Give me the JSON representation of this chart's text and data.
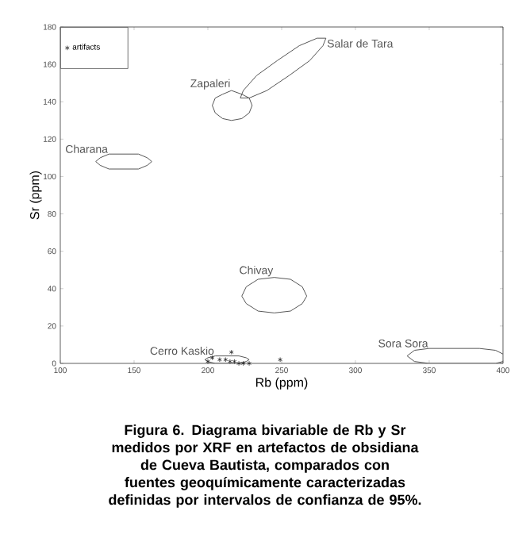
{
  "chart_data": {
    "type": "scatter",
    "xlabel": "Rb (ppm)",
    "ylabel": "Sr (ppm)",
    "xlim": [
      100,
      400
    ],
    "ylim": [
      0,
      180
    ],
    "xticks": [
      100,
      150,
      200,
      250,
      300,
      350,
      400
    ],
    "yticks": [
      0,
      20,
      40,
      60,
      80,
      100,
      120,
      140,
      160,
      180
    ],
    "legend": "top left",
    "series": [
      {
        "name": "artifacts",
        "marker": "cross",
        "color": "#222222",
        "x": [
          200,
          203,
          208,
          212,
          216,
          215,
          218,
          221,
          224,
          228,
          249
        ],
        "values": [
          1,
          3,
          2,
          2,
          6,
          1,
          1,
          0,
          0,
          0,
          2
        ]
      },
      {
        "name": "Charana",
        "type": "line",
        "color": "#555555",
        "x": [
          124,
          127,
          133,
          143,
          153,
          159,
          162
        ],
        "values": [
          108,
          110,
          112,
          112,
          112,
          110,
          108
        ]
      },
      {
        "type": "line",
        "color": "#555555",
        "x": [
          124,
          127,
          133,
          143,
          153,
          159,
          162
        ],
        "values": [
          108,
          106,
          104,
          104,
          104,
          106,
          108
        ]
      },
      {
        "name": "Zapaleri",
        "type": "line",
        "color": "#555555",
        "x": [
          203,
          205,
          210,
          216,
          223,
          228,
          230
        ],
        "values": [
          138,
          142,
          144,
          146,
          144,
          142,
          138
        ]
      },
      {
        "type": "line",
        "color": "#555555",
        "x": [
          203,
          205,
          210,
          216,
          223,
          228,
          230
        ],
        "values": [
          138,
          134,
          131,
          130,
          131,
          134,
          138
        ]
      },
      {
        "name": "Salar de Tara",
        "type": "line",
        "color": "#555555",
        "x": [
          222,
          224,
          233,
          247,
          262,
          274,
          280
        ],
        "values": [
          142,
          146,
          154,
          162,
          170,
          174,
          174
        ]
      },
      {
        "type": "line",
        "color": "#555555",
        "x": [
          222,
          228,
          240,
          255,
          269,
          278,
          280
        ],
        "values": [
          142,
          142,
          146,
          154,
          162,
          170,
          174
        ]
      },
      {
        "name": "Chivay",
        "type": "line",
        "color": "#555555",
        "x": [
          223,
          226,
          234,
          245,
          256,
          264,
          267
        ],
        "values": [
          36,
          41,
          45,
          46,
          45,
          41,
          36
        ]
      },
      {
        "type": "line",
        "color": "#555555",
        "x": [
          223,
          226,
          234,
          245,
          256,
          264,
          267
        ],
        "values": [
          36,
          32,
          28,
          27,
          28,
          32,
          36
        ]
      },
      {
        "name": "Cerro Kaskio",
        "type": "line",
        "color": "#555555",
        "x": [
          198,
          200,
          205,
          213,
          221,
          226,
          228
        ],
        "values": [
          2,
          3,
          4,
          4,
          4,
          3,
          2
        ]
      },
      {
        "type": "line",
        "color": "#555555",
        "x": [
          198,
          200,
          205,
          213,
          221,
          226,
          228
        ],
        "values": [
          2,
          1,
          0,
          0,
          0,
          1,
          2
        ]
      },
      {
        "name": "Sora Sora",
        "type": "line",
        "color": "#555555",
        "x": [
          335,
          340,
          350,
          367,
          384,
          395,
          400
        ],
        "values": [
          4,
          7,
          8,
          8,
          8,
          7,
          5
        ]
      },
      {
        "type": "line",
        "color": "#555555",
        "x": [
          335,
          340,
          350,
          384,
          395,
          400
        ],
        "values": [
          4,
          1,
          0,
          0,
          0,
          1
        ]
      }
    ],
    "annotations": [
      "Figura 6. Diagrama bivariable de Rb y Sr medidos por XRF en artefactos de obsidiana de Cueva Bautista, comparados con fuentes geoquímicamente caracterizadas definidas por intervalos de confianza de 95%."
    ]
  }
}
